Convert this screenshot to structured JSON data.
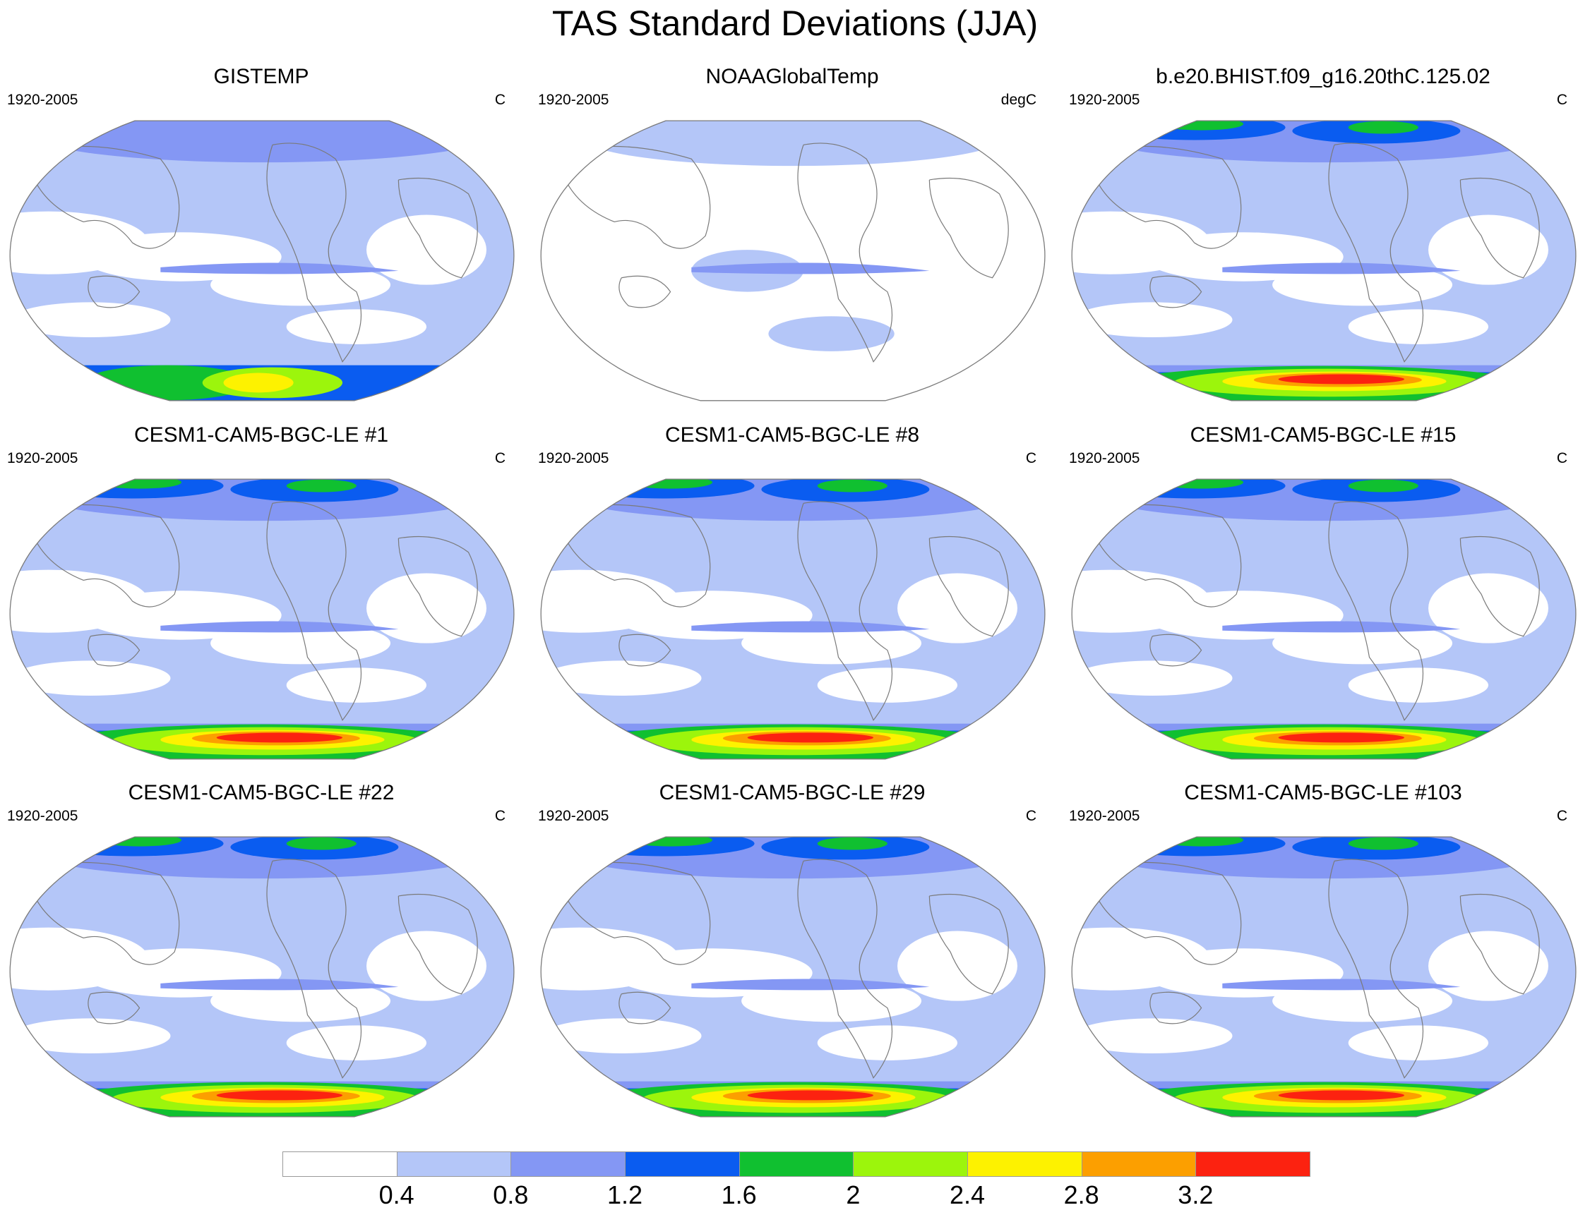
{
  "title": "TAS Standard Deviations (JJA)",
  "panels": [
    {
      "title": "GISTEMP",
      "left": "1920-2005",
      "right": "C"
    },
    {
      "title": "NOAAGlobalTemp",
      "left": "1920-2005",
      "right": "degC"
    },
    {
      "title": "b.e20.BHIST.f09_g16.20thC.125.02",
      "left": "1920-2005",
      "right": "C"
    },
    {
      "title": "CESM1-CAM5-BGC-LE #1",
      "left": "1920-2005",
      "right": "C"
    },
    {
      "title": "CESM1-CAM5-BGC-LE #8",
      "left": "1920-2005",
      "right": "C"
    },
    {
      "title": "CESM1-CAM5-BGC-LE #15",
      "left": "1920-2005",
      "right": "C"
    },
    {
      "title": "CESM1-CAM5-BGC-LE #22",
      "left": "1920-2005",
      "right": "C"
    },
    {
      "title": "CESM1-CAM5-BGC-LE #29",
      "left": "1920-2005",
      "right": "C"
    },
    {
      "title": "CESM1-CAM5-BGC-LE #103",
      "left": "1920-2005",
      "right": "C"
    }
  ],
  "colorbar": {
    "labels": [
      "0.4",
      "0.8",
      "1.2",
      "1.6",
      "2",
      "2.4",
      "2.8",
      "3.2"
    ],
    "colors": [
      "#ffffff",
      "#b4c6f8",
      "#8497f4",
      "#0a5cf0",
      "#10c030",
      "#9cf50c",
      "#fdf200",
      "#fc9f00",
      "#fc2210"
    ]
  }
}
